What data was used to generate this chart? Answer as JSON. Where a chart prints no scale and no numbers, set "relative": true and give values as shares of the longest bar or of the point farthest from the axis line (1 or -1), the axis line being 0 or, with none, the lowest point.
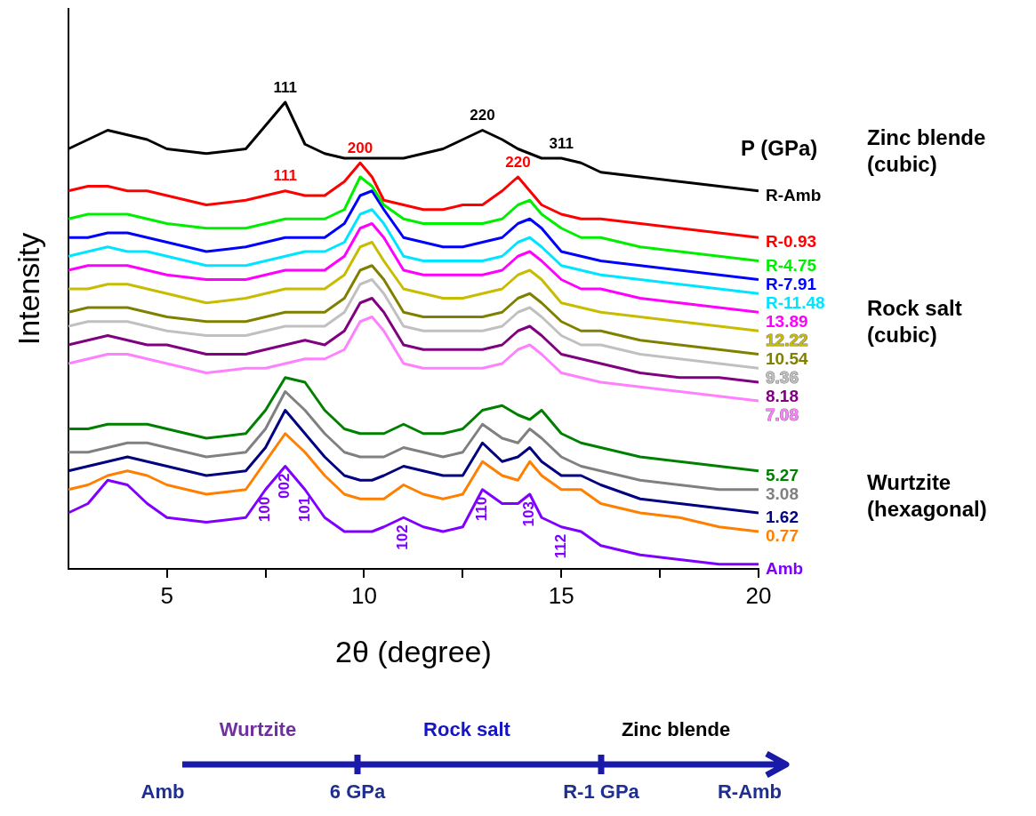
{
  "chart_data": {
    "type": "line",
    "relative": true,
    "xlabel": "2θ (degree)",
    "ylabel": "Intensity",
    "legend_title": "P (GPa)",
    "legend": false,
    "grid": false,
    "marker": "none",
    "line_style": "solid",
    "x": [
      2.5,
      3,
      3.5,
      4,
      4.5,
      5,
      6,
      7,
      7.5,
      8,
      8.5,
      9,
      9.5,
      9.9,
      10.2,
      10.5,
      11,
      11.5,
      12,
      12.5,
      13,
      13.5,
      13.9,
      14.2,
      14.5,
      15,
      15.5,
      16,
      17,
      18,
      19,
      20
    ],
    "xlim": [
      2.5,
      20
    ],
    "xticks": [
      5,
      {
        "value": 7.5,
        "label": null
      },
      10,
      {
        "value": 12.5,
        "label": null
      },
      15,
      {
        "value": 17.5,
        "label": null
      },
      20
    ],
    "series": [
      {
        "name": "R-Amb",
        "color": "#000000",
        "values": [
          0.9,
          0.92,
          0.94,
          0.93,
          0.92,
          0.9,
          0.89,
          0.9,
          0.95,
          1.0,
          0.91,
          0.89,
          0.88,
          0.88,
          0.88,
          0.88,
          0.88,
          0.89,
          0.9,
          0.92,
          0.94,
          0.92,
          0.9,
          0.89,
          0.88,
          0.88,
          0.87,
          0.85,
          0.84,
          0.83,
          0.82,
          0.81
        ]
      },
      {
        "name": "R-0.93",
        "color": "#ff0000",
        "values": [
          0.81,
          0.82,
          0.82,
          0.81,
          0.81,
          0.8,
          0.78,
          0.79,
          0.8,
          0.81,
          0.8,
          0.8,
          0.83,
          0.87,
          0.84,
          0.79,
          0.78,
          0.77,
          0.77,
          0.78,
          0.78,
          0.81,
          0.84,
          0.81,
          0.78,
          0.76,
          0.75,
          0.75,
          0.74,
          0.73,
          0.72,
          0.71
        ]
      },
      {
        "name": "R-4.75",
        "color": "#00ee00",
        "values": [
          0.75,
          0.76,
          0.76,
          0.76,
          0.75,
          0.74,
          0.73,
          0.73,
          0.74,
          0.75,
          0.75,
          0.75,
          0.77,
          0.84,
          0.82,
          0.78,
          0.75,
          0.74,
          0.74,
          0.74,
          0.74,
          0.75,
          0.78,
          0.79,
          0.76,
          0.73,
          0.71,
          0.71,
          0.69,
          0.68,
          0.67,
          0.66
        ]
      },
      {
        "name": "R-7.91",
        "color": "#0000ff",
        "values": [
          0.71,
          0.71,
          0.72,
          0.72,
          0.71,
          0.7,
          0.68,
          0.69,
          0.7,
          0.71,
          0.71,
          0.71,
          0.74,
          0.8,
          0.81,
          0.77,
          0.71,
          0.7,
          0.69,
          0.69,
          0.7,
          0.71,
          0.74,
          0.75,
          0.73,
          0.68,
          0.67,
          0.66,
          0.65,
          0.64,
          0.63,
          0.62
        ]
      },
      {
        "name": "R-11.48",
        "color": "#00e5ff",
        "values": [
          0.67,
          0.68,
          0.69,
          0.68,
          0.68,
          0.67,
          0.65,
          0.65,
          0.66,
          0.67,
          0.68,
          0.68,
          0.7,
          0.76,
          0.77,
          0.74,
          0.67,
          0.66,
          0.66,
          0.66,
          0.66,
          0.67,
          0.7,
          0.71,
          0.69,
          0.65,
          0.64,
          0.63,
          0.62,
          0.61,
          0.6,
          0.59
        ]
      },
      {
        "name": "13.89",
        "color": "#ff00ff",
        "values": [
          0.64,
          0.65,
          0.65,
          0.65,
          0.64,
          0.63,
          0.62,
          0.62,
          0.63,
          0.64,
          0.64,
          0.64,
          0.67,
          0.73,
          0.74,
          0.71,
          0.64,
          0.63,
          0.63,
          0.63,
          0.63,
          0.64,
          0.67,
          0.68,
          0.66,
          0.62,
          0.6,
          0.6,
          0.58,
          0.57,
          0.56,
          0.55
        ]
      },
      {
        "name": "12.22",
        "color": "#c8bc00",
        "values": [
          0.6,
          0.6,
          0.61,
          0.61,
          0.6,
          0.59,
          0.57,
          0.58,
          0.59,
          0.6,
          0.6,
          0.6,
          0.63,
          0.69,
          0.7,
          0.66,
          0.6,
          0.59,
          0.58,
          0.58,
          0.59,
          0.6,
          0.63,
          0.64,
          0.62,
          0.57,
          0.56,
          0.55,
          0.54,
          0.53,
          0.52,
          0.51
        ]
      },
      {
        "name": "10.54",
        "color": "#808000",
        "values": [
          0.55,
          0.56,
          0.56,
          0.56,
          0.55,
          0.54,
          0.53,
          0.53,
          0.54,
          0.55,
          0.55,
          0.55,
          0.58,
          0.64,
          0.65,
          0.62,
          0.55,
          0.54,
          0.54,
          0.54,
          0.54,
          0.55,
          0.58,
          0.59,
          0.57,
          0.53,
          0.51,
          0.51,
          0.49,
          0.48,
          0.47,
          0.46
        ]
      },
      {
        "name": "9.36",
        "color": "#c0c0c0",
        "values": [
          0.52,
          0.53,
          0.53,
          0.53,
          0.52,
          0.51,
          0.5,
          0.5,
          0.51,
          0.52,
          0.52,
          0.52,
          0.55,
          0.61,
          0.62,
          0.59,
          0.52,
          0.51,
          0.51,
          0.51,
          0.51,
          0.52,
          0.55,
          0.56,
          0.54,
          0.5,
          0.48,
          0.48,
          0.46,
          0.45,
          0.44,
          0.43
        ]
      },
      {
        "name": "8.18",
        "color": "#800080",
        "values": [
          0.48,
          0.49,
          0.5,
          0.49,
          0.48,
          0.48,
          0.46,
          0.46,
          0.47,
          0.48,
          0.49,
          0.48,
          0.51,
          0.57,
          0.58,
          0.55,
          0.48,
          0.47,
          0.47,
          0.47,
          0.47,
          0.48,
          0.51,
          0.52,
          0.5,
          0.46,
          0.45,
          0.44,
          0.42,
          0.41,
          0.41,
          0.4
        ]
      },
      {
        "name": "7.08",
        "color": "#ff80ff",
        "values": [
          0.44,
          0.45,
          0.46,
          0.46,
          0.45,
          0.44,
          0.42,
          0.43,
          0.43,
          0.44,
          0.45,
          0.45,
          0.47,
          0.53,
          0.54,
          0.51,
          0.44,
          0.43,
          0.43,
          0.43,
          0.43,
          0.44,
          0.47,
          0.48,
          0.46,
          0.42,
          0.41,
          0.4,
          0.39,
          0.38,
          0.37,
          0.36
        ]
      },
      {
        "name": "5.27",
        "color": "#008000",
        "values": [
          0.3,
          0.3,
          0.31,
          0.31,
          0.31,
          0.3,
          0.28,
          0.29,
          0.34,
          0.41,
          0.4,
          0.34,
          0.3,
          0.29,
          0.29,
          0.29,
          0.31,
          0.29,
          0.29,
          0.3,
          0.34,
          0.35,
          0.33,
          0.32,
          0.34,
          0.29,
          0.27,
          0.26,
          0.24,
          0.23,
          0.22,
          0.21
        ]
      },
      {
        "name": "3.08",
        "color": "#808080",
        "values": [
          0.25,
          0.25,
          0.26,
          0.27,
          0.27,
          0.26,
          0.24,
          0.25,
          0.3,
          0.38,
          0.34,
          0.29,
          0.25,
          0.24,
          0.24,
          0.24,
          0.26,
          0.25,
          0.24,
          0.25,
          0.31,
          0.28,
          0.27,
          0.3,
          0.28,
          0.24,
          0.22,
          0.21,
          0.19,
          0.18,
          0.17,
          0.17
        ]
      },
      {
        "name": "1.62",
        "color": "#000080",
        "values": [
          0.21,
          0.22,
          0.23,
          0.24,
          0.23,
          0.22,
          0.2,
          0.21,
          0.26,
          0.34,
          0.29,
          0.24,
          0.2,
          0.19,
          0.19,
          0.2,
          0.22,
          0.21,
          0.2,
          0.2,
          0.27,
          0.23,
          0.24,
          0.26,
          0.23,
          0.2,
          0.2,
          0.18,
          0.15,
          0.14,
          0.13,
          0.12
        ]
      },
      {
        "name": "0.77",
        "color": "#ff8000",
        "values": [
          0.17,
          0.18,
          0.2,
          0.21,
          0.2,
          0.18,
          0.16,
          0.17,
          0.23,
          0.29,
          0.25,
          0.2,
          0.16,
          0.15,
          0.15,
          0.15,
          0.18,
          0.16,
          0.15,
          0.16,
          0.23,
          0.2,
          0.19,
          0.23,
          0.2,
          0.17,
          0.17,
          0.14,
          0.12,
          0.11,
          0.09,
          0.08
        ]
      },
      {
        "name": "Amb",
        "color": "#8000ff",
        "values": [
          0.12,
          0.14,
          0.19,
          0.18,
          0.14,
          0.11,
          0.1,
          0.11,
          0.17,
          0.22,
          0.17,
          0.11,
          0.08,
          0.08,
          0.08,
          0.09,
          0.11,
          0.09,
          0.08,
          0.09,
          0.17,
          0.14,
          0.14,
          0.16,
          0.11,
          0.09,
          0.08,
          0.05,
          0.03,
          0.02,
          0.01,
          0.01
        ]
      }
    ],
    "annotations": [
      {
        "text": "111",
        "x": 8,
        "y": 1.0
      },
      {
        "text": "220",
        "x": 13,
        "y": 0.94
      },
      {
        "text": "311",
        "x": 15,
        "y": 0.88
      },
      {
        "text": "111",
        "x": 8,
        "y": 0.81
      },
      {
        "text": "200",
        "x": 9.9,
        "y": 0.87
      },
      {
        "text": "220",
        "x": 13.9,
        "y": 0.84
      },
      {
        "text": "100",
        "x": 7.5,
        "y": 0.17
      },
      {
        "text": "002",
        "x": 8,
        "y": 0.22
      },
      {
        "text": "101",
        "x": 8.5,
        "y": 0.17
      },
      {
        "text": "102",
        "x": 11,
        "y": 0.11
      },
      {
        "text": "110",
        "x": 13,
        "y": 0.17
      },
      {
        "text": "103",
        "x": 14.2,
        "y": 0.16
      },
      {
        "text": "112",
        "x": 15,
        "y": 0.09
      },
      "Zinc blende (cubic)",
      "Rock salt (cubic)",
      "Wurtzite (hexagonal)",
      "Wurtzite",
      "Rock salt",
      "Zinc blende",
      "Amb",
      "6 GPa",
      "R-1 GPa",
      "R-Amb"
    ]
  }
}
